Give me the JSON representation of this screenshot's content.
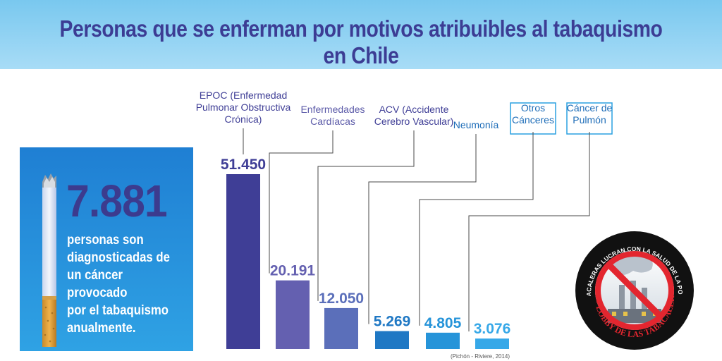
{
  "title": "Personas que se enferman por motivos atribuibles al tabaquismo en Chile",
  "callout": {
    "number": "7.881",
    "text_lines": [
      "personas son",
      "diagnosticadas de",
      "un cáncer provocado",
      "por el tabaquismo",
      "anualmente."
    ]
  },
  "source": "(Pichón - Riviere, 2014)",
  "badge": {
    "top_text": "LAS TABACALERAS LUCRAN CON LA SALUD DE LA POBLACIÓN",
    "bottom_text": "NO + LOBBY DE LAS TABACALERAS"
  },
  "colors": {
    "header": "#8fd2f3",
    "title": "#3c3d94",
    "panel": "#2a93dd",
    "callout_number": "#3c3b8e"
  },
  "chart_data": {
    "type": "bar",
    "categories": [
      [
        "EPOC (Enfermedad",
        "Pulmonar Obstructiva",
        "Crónica)"
      ],
      [
        "Enfermedades",
        "Cardíacas"
      ],
      [
        "ACV (Accidente",
        "Cerebro Vascular)"
      ],
      [
        "Neumonía"
      ],
      [
        "Otros",
        "Cánceres"
      ],
      [
        "Cáncer de",
        "Pulmón"
      ]
    ],
    "values": [
      51450,
      20191,
      12050,
      5269,
      4805,
      3076
    ],
    "value_labels": [
      "51.450",
      "20.191",
      "12.050",
      "5.269",
      "4.805",
      "3.076"
    ],
    "colors": [
      "#3f3e96",
      "#6460b0",
      "#5b6fba",
      "#1f78c4",
      "#2694d9",
      "#36a8e8"
    ],
    "label_colors": [
      "#3f3e96",
      "#5b5aa8",
      "#3f3e96",
      "#1e6db8",
      "#1e6db8",
      "#1e6db8"
    ],
    "boxed_labels": [
      false,
      false,
      false,
      false,
      true,
      true
    ]
  }
}
